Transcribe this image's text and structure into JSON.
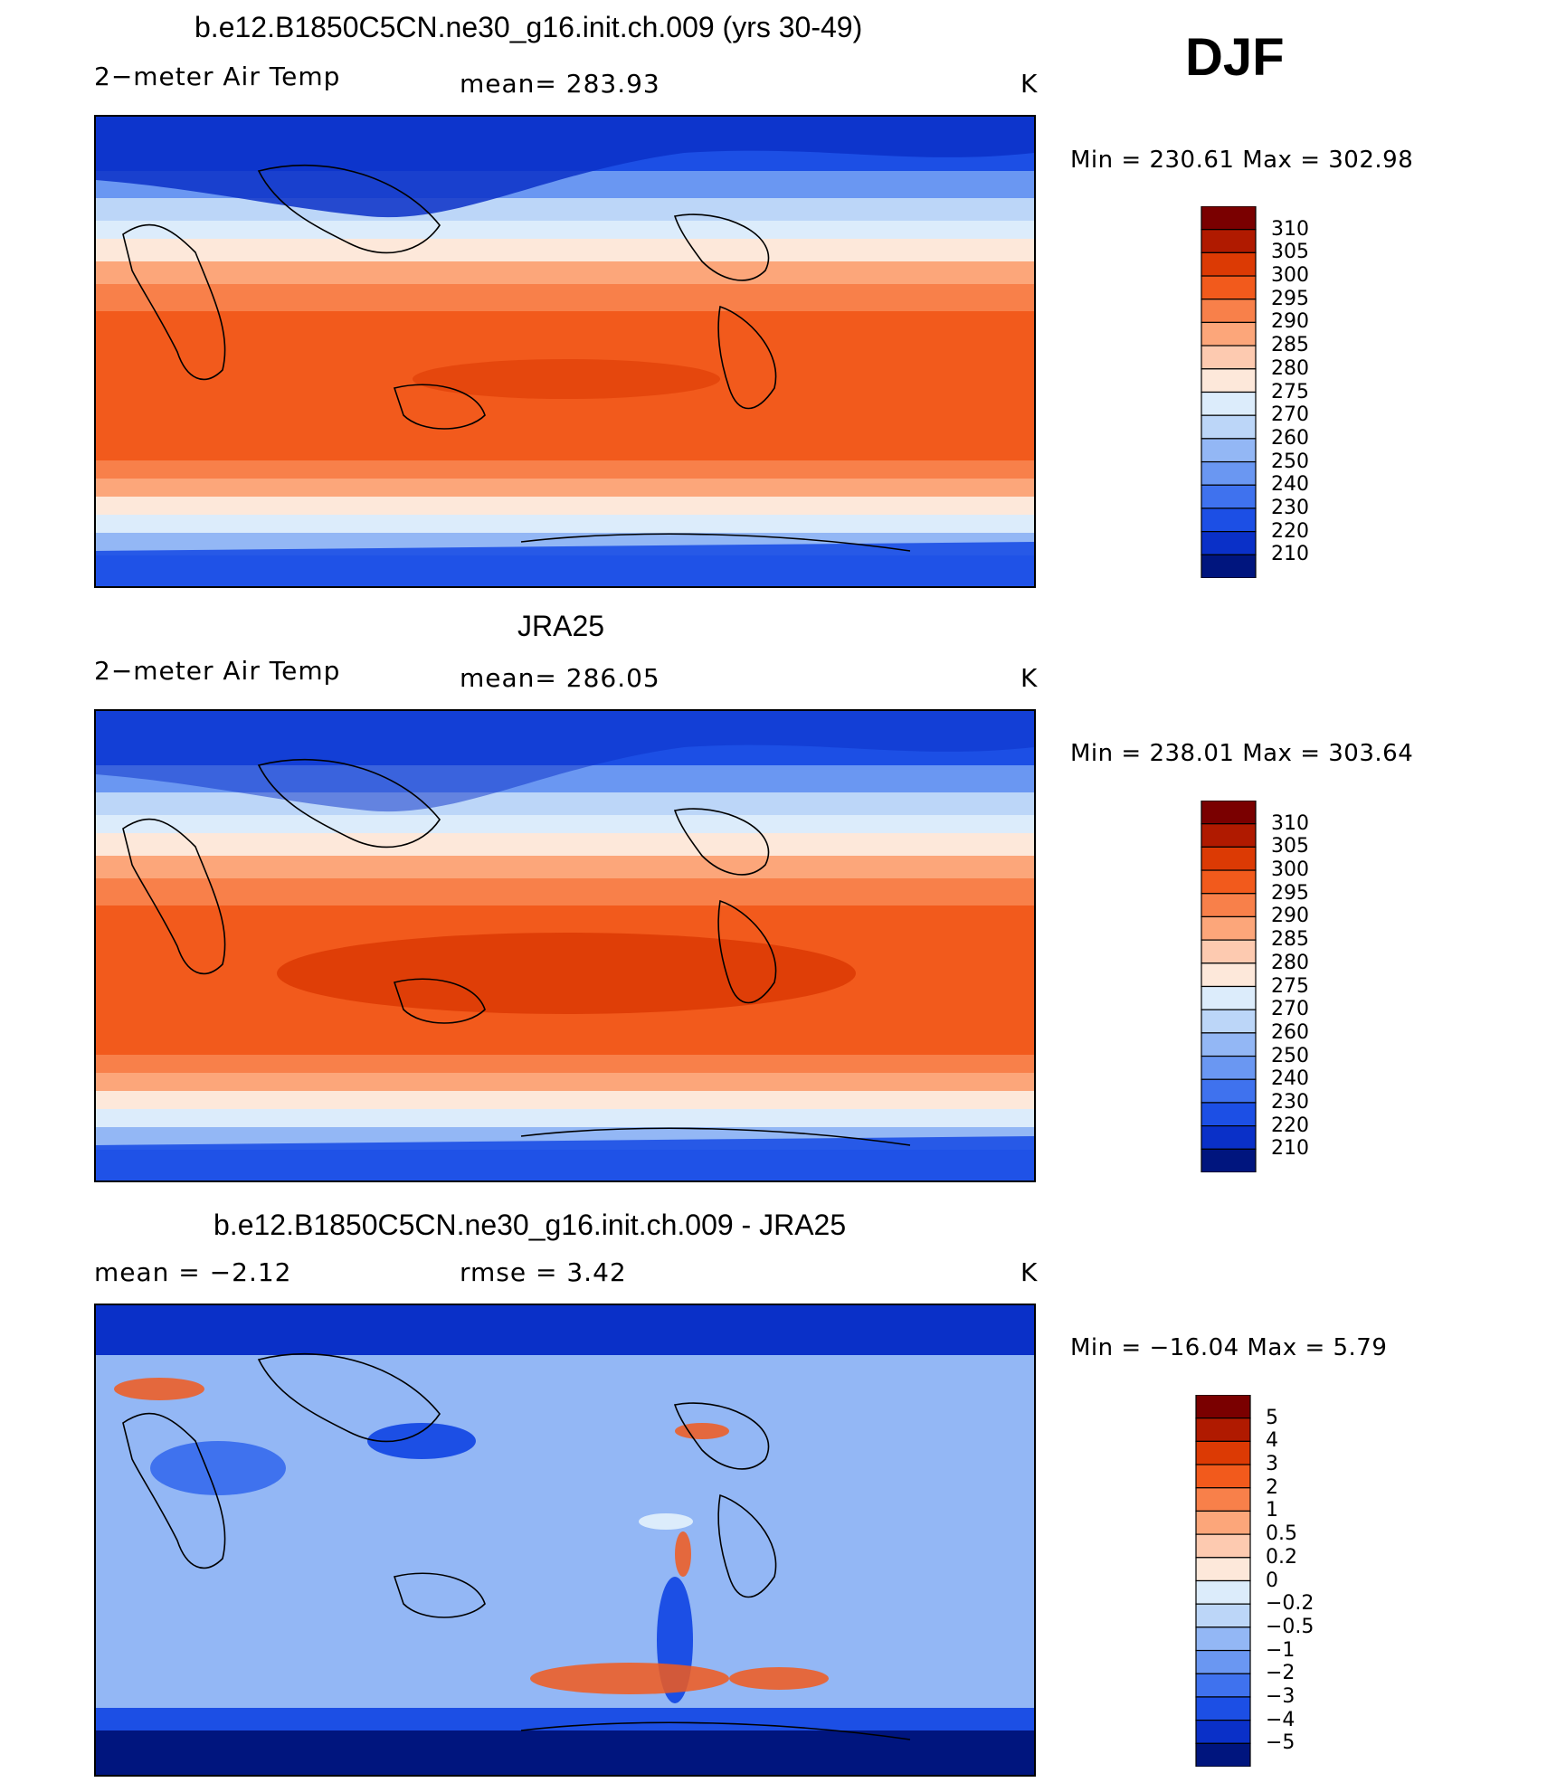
{
  "season": "DJF",
  "panels": [
    {
      "title": "b.e12.B1850C5CN.ne30_g16.init.ch.009 (yrs 30-49)",
      "left_label": "2−meter Air Temp",
      "center_label": "mean=  283.93",
      "units": "K",
      "minmax": "Min  =  230.61  Max  =  302.98"
    },
    {
      "title": "JRA25",
      "left_label": "2−meter Air Temp",
      "center_label": "mean=  286.05",
      "units": "K",
      "minmax": "Min  =  238.01  Max  =  303.64"
    },
    {
      "title": "b.e12.B1850C5CN.ne30_g16.init.ch.009 - JRA25",
      "left_label": "mean  =     −2.12",
      "center_label": "rmse  =      3.42",
      "units": "K",
      "minmax": "Min  =  −16.04  Max  =     5.79"
    }
  ],
  "chart_data": [
    {
      "type": "heatmap",
      "title": "b.e12.B1850C5CN.ne30_g16.init.ch.009 (yrs 30-49)",
      "variable": "2−meter Air Temp",
      "units": "K",
      "mean": 283.93,
      "min": 230.61,
      "max": 302.98,
      "colorbar_levels": [
        "310",
        "305",
        "300",
        "295",
        "290",
        "285",
        "280",
        "275",
        "270",
        "260",
        "250",
        "240",
        "230",
        "220",
        "210"
      ],
      "colorbar_colors": [
        "#7a0000",
        "#b01a00",
        "#dc3a04",
        "#f25a1c",
        "#f8804a",
        "#fca67a",
        "#fdcab0",
        "#fde8da",
        "#dcecfb",
        "#bcd6f8",
        "#93b7f5",
        "#6a97f2",
        "#3f72ee",
        "#1c4fe5",
        "#0a30c8",
        "#00157e"
      ]
    },
    {
      "type": "heatmap",
      "title": "JRA25",
      "variable": "2−meter Air Temp",
      "units": "K",
      "mean": 286.05,
      "min": 238.01,
      "max": 303.64,
      "colorbar_levels": [
        "310",
        "305",
        "300",
        "295",
        "290",
        "285",
        "280",
        "275",
        "270",
        "260",
        "250",
        "240",
        "230",
        "220",
        "210"
      ],
      "colorbar_colors": [
        "#7a0000",
        "#b01a00",
        "#dc3a04",
        "#f25a1c",
        "#f8804a",
        "#fca67a",
        "#fdcab0",
        "#fde8da",
        "#dcecfb",
        "#bcd6f8",
        "#93b7f5",
        "#6a97f2",
        "#3f72ee",
        "#1c4fe5",
        "#0a30c8",
        "#00157e"
      ]
    },
    {
      "type": "heatmap",
      "title": "b.e12.B1850C5CN.ne30_g16.init.ch.009 - JRA25",
      "units": "K",
      "mean": -2.12,
      "rmse": 3.42,
      "min": -16.04,
      "max": 5.79,
      "colorbar_levels": [
        "5",
        "4",
        "3",
        "2",
        "1",
        "0.5",
        "0.2",
        "0",
        "−0.2",
        "−0.5",
        "−1",
        "−2",
        "−3",
        "−4",
        "−5"
      ],
      "colorbar_colors": [
        "#7a0000",
        "#b01a00",
        "#dc3a04",
        "#f25a1c",
        "#f8804a",
        "#fca67a",
        "#fdcab0",
        "#fde8da",
        "#dcecfb",
        "#bcd6f8",
        "#93b7f5",
        "#6a97f2",
        "#3f72ee",
        "#1c4fe5",
        "#0a30c8",
        "#00157e"
      ]
    }
  ]
}
